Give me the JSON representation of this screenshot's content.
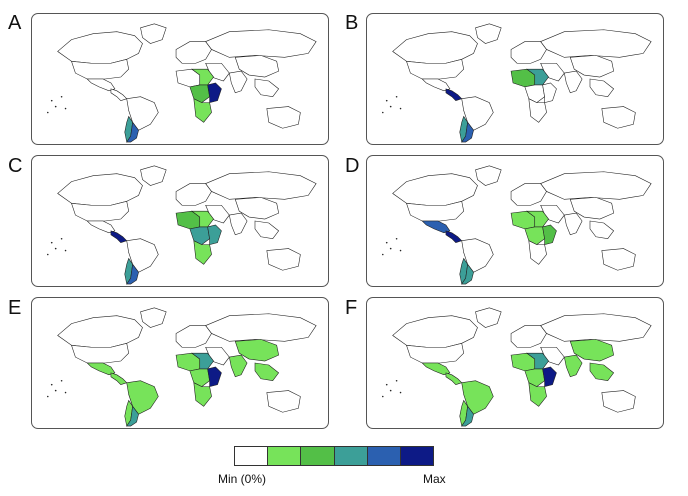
{
  "panels": [
    {
      "label": "A",
      "fills": {
        "arg": 4,
        "chile": 3,
        "braz": 0,
        "cam": 0,
        "mex": 0,
        "wafr": 0,
        "cafr": 2,
        "eafr": 5,
        "safr": 1,
        "india": 0,
        "china": 0,
        "sea": 0,
        "afr1": 1
      }
    },
    {
      "label": "B",
      "fills": {
        "arg": 4,
        "chile": 3,
        "braz": 0,
        "cam": 5,
        "mex": 0,
        "wafr": 2,
        "cafr": 0,
        "eafr": 0,
        "safr": 0,
        "india": 0,
        "china": 0,
        "sea": 0,
        "afr1": 3,
        "eafr2": 1
      }
    },
    {
      "label": "C",
      "fills": {
        "arg": 4,
        "chile": 3,
        "braz": 0,
        "cam": 5,
        "mex": 0,
        "wafr": 2,
        "cafr": 3,
        "eafr": 3,
        "safr": 1,
        "india": 0,
        "china": 0,
        "sea": 0,
        "afr1": 1
      }
    },
    {
      "label": "D",
      "fills": {
        "arg": 3,
        "chile": 3,
        "braz": 0,
        "cam": 5,
        "mex": 4,
        "wafr": 1,
        "cafr": 1,
        "eafr": 2,
        "safr": 0,
        "india": 0,
        "china": 0,
        "sea": 0,
        "afr1": 1
      }
    },
    {
      "label": "E",
      "fills": {
        "arg": 3,
        "chile": 1,
        "braz": 1,
        "cam": 1,
        "mex": 1,
        "wafr": 1,
        "cafr": 1,
        "eafr": 5,
        "safr": 1,
        "india": 1,
        "china": 1,
        "sea": 1,
        "afr1": 3
      }
    },
    {
      "label": "F",
      "fills": {
        "arg": 3,
        "chile": 1,
        "braz": 1,
        "cam": 1,
        "mex": 1,
        "wafr": 1,
        "cafr": 1,
        "eafr": 5,
        "safr": 1,
        "india": 1,
        "china": 1,
        "sea": 1,
        "afr1": 3
      }
    }
  ],
  "legend": {
    "min_label": "Min (0%)",
    "max_label": "Max",
    "colors": [
      "#ffffff",
      "#77e35a",
      "#53bf47",
      "#3c9f98",
      "#2b60b0",
      "#0d1a86"
    ]
  }
}
